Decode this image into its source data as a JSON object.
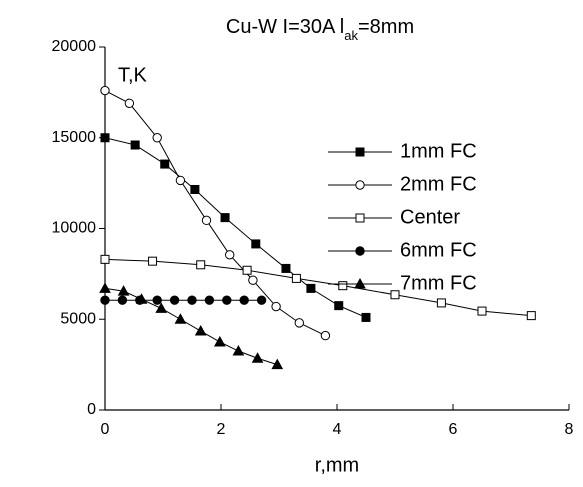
{
  "chart_data": {
    "type": "line",
    "title_parts": [
      "Cu-W I=30A l",
      "ak",
      "=8mm"
    ],
    "y_label": "T,K",
    "x_label": "r,mm",
    "xlim": [
      0,
      8
    ],
    "xticks": [
      0,
      2,
      4,
      6,
      8
    ],
    "ylim": [
      0,
      20000
    ],
    "yticks": [
      0,
      5000,
      10000,
      15000,
      20000
    ],
    "legend": "upper right",
    "series": [
      {
        "name": "1mm FC",
        "color": "#000000",
        "marker": "square",
        "filled": true,
        "x": [
          0,
          0.52,
          1.03,
          1.55,
          2.07,
          2.6,
          3.12,
          3.55,
          4.03,
          4.5
        ],
        "values": [
          15000,
          14600,
          13550,
          12150,
          10600,
          9150,
          7800,
          6700,
          5750,
          5100
        ]
      },
      {
        "name": "2mm FC",
        "color": "#000000",
        "marker": "circle",
        "filled": false,
        "x": [
          0,
          0.42,
          0.9,
          1.3,
          1.75,
          2.15,
          2.55,
          2.95,
          3.35,
          3.8
        ],
        "values": [
          17600,
          16900,
          15000,
          12650,
          10450,
          8550,
          7150,
          5700,
          4800,
          4100
        ]
      },
      {
        "name": "Center",
        "color": "#000000",
        "marker": "square",
        "filled": false,
        "x": [
          0,
          0.82,
          1.65,
          2.45,
          3.3,
          4.1,
          5.0,
          5.8,
          6.5,
          7.35
        ],
        "values": [
          8300,
          8200,
          8000,
          7700,
          7250,
          6850,
          6350,
          5900,
          5450,
          5200
        ]
      },
      {
        "name": "6mm FC",
        "color": "#000000",
        "marker": "circle",
        "filled": true,
        "x": [
          0,
          0.3,
          0.6,
          0.9,
          1.2,
          1.5,
          1.8,
          2.1,
          2.4,
          2.7
        ],
        "values": [
          6050,
          6050,
          6050,
          6050,
          6050,
          6050,
          6050,
          6050,
          6050,
          6050
        ]
      },
      {
        "name": "7mm FC",
        "color": "#000000",
        "marker": "triangle",
        "filled": true,
        "x": [
          0,
          0.32,
          0.63,
          0.97,
          1.3,
          1.65,
          1.98,
          2.3,
          2.63,
          2.97
        ],
        "values": [
          6700,
          6550,
          6100,
          5600,
          5000,
          4350,
          3750,
          3250,
          2850,
          2500
        ]
      }
    ]
  }
}
